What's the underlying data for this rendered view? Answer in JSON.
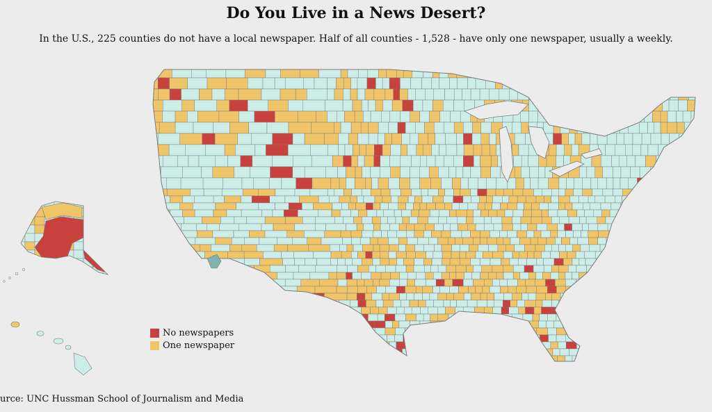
{
  "header": {
    "title": "Do You Live in a News Desert?",
    "subtitle": "In the U.S., 225 counties do not have a local newspaper. Half of all counties - 1,528 - have only one newspaper, usually a weekly."
  },
  "map": {
    "colors": {
      "none": "#c9413d",
      "one": "#efc568",
      "multiple": "#cdeee8",
      "special": "#7fb3ad",
      "border": "#7a7a7a",
      "background": "#ececec"
    }
  },
  "legend": {
    "items": [
      {
        "label": "No newspapers",
        "color": "#c9413d"
      },
      {
        "label": "One newspaper",
        "color": "#efc568"
      }
    ]
  },
  "footer": {
    "source": "urce: UNC Hussman School of Journalism and Media"
  }
}
